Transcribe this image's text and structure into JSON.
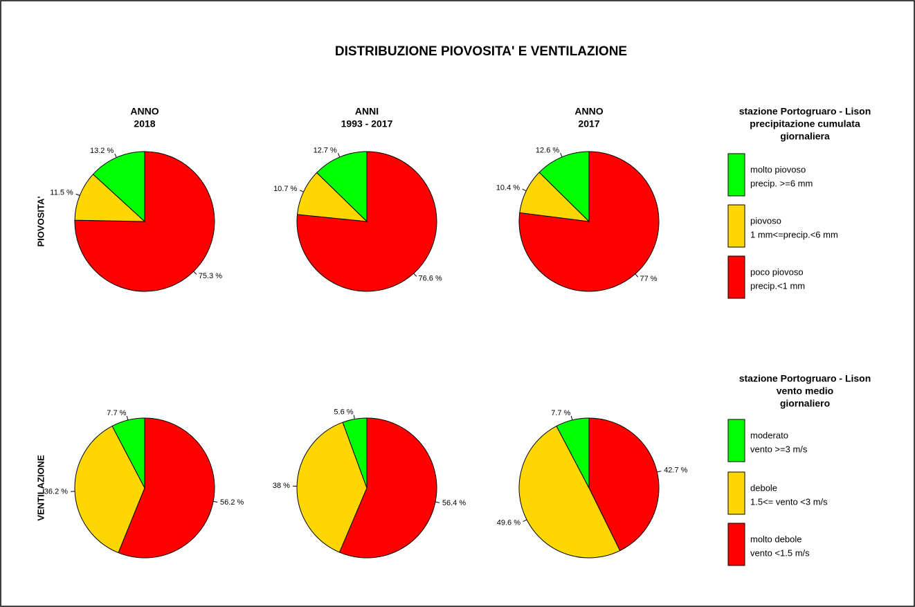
{
  "title": "DISTRIBUZIONE PIOVOSITA' E VENTILAZIONE",
  "rows": [
    {
      "label": "PIOVOSITA'",
      "legend_title": [
        "stazione  Portogruaro - Lison",
        "precipitazione cumulata",
        "giornaliera"
      ],
      "legend": [
        {
          "lines": [
            "molto piovoso",
            "precip. >=6 mm"
          ],
          "color": "#00ff00"
        },
        {
          "lines": [
            "piovoso",
            "1 mm<=precip.<6 mm"
          ],
          "color": "#ffd700"
        },
        {
          "lines": [
            "poco piovoso",
            "precip.<1 mm"
          ],
          "color": "#ff0000"
        }
      ]
    },
    {
      "label": "VENTILAZIONE",
      "legend_title": [
        "stazione  Portogruaro - Lison",
        "vento medio",
        "giornaliero"
      ],
      "legend": [
        {
          "lines": [
            "moderato",
            "vento >=3 m/s"
          ],
          "color": "#00ff00"
        },
        {
          "lines": [
            "debole",
            "1.5<= vento <3 m/s"
          ],
          "color": "#ffd700"
        },
        {
          "lines": [
            "molto debole",
            "vento <1.5 m/s"
          ],
          "color": "#ff0000"
        }
      ]
    }
  ],
  "chart_data": [
    {
      "type": "pie",
      "title": [
        "ANNO",
        "2018"
      ],
      "values": [
        75.3,
        11.5,
        13.2
      ],
      "value_labels": [
        "75.3 %",
        "11.5 %",
        "13.2 %"
      ],
      "colors": [
        "#ff0000",
        "#ffd700",
        "#00ff00"
      ]
    },
    {
      "type": "pie",
      "title": [
        "ANNI",
        "1993 - 2017"
      ],
      "values": [
        76.6,
        10.7,
        12.7
      ],
      "value_labels": [
        "76.6 %",
        "10.7 %",
        "12.7 %"
      ],
      "colors": [
        "#ff0000",
        "#ffd700",
        "#00ff00"
      ]
    },
    {
      "type": "pie",
      "title": [
        "ANNO",
        "2017"
      ],
      "values": [
        77,
        10.4,
        12.6
      ],
      "value_labels": [
        "77 %",
        "10.4 %",
        "12.6 %"
      ],
      "colors": [
        "#ff0000",
        "#ffd700",
        "#00ff00"
      ]
    },
    {
      "type": "pie",
      "values": [
        56.2,
        36.2,
        7.7
      ],
      "value_labels": [
        "56.2 %",
        "36.2 %",
        "7.7 %"
      ],
      "colors": [
        "#ff0000",
        "#ffd700",
        "#00ff00"
      ]
    },
    {
      "type": "pie",
      "values": [
        56.4,
        38,
        5.6
      ],
      "value_labels": [
        "56.4 %",
        "38 %",
        "5.6 %"
      ],
      "colors": [
        "#ff0000",
        "#ffd700",
        "#00ff00"
      ]
    },
    {
      "type": "pie",
      "values": [
        42.7,
        49.6,
        7.7
      ],
      "value_labels": [
        "42.7 %",
        "49.6 %",
        "7.7 %"
      ],
      "colors": [
        "#ff0000",
        "#ffd700",
        "#00ff00"
      ]
    }
  ]
}
